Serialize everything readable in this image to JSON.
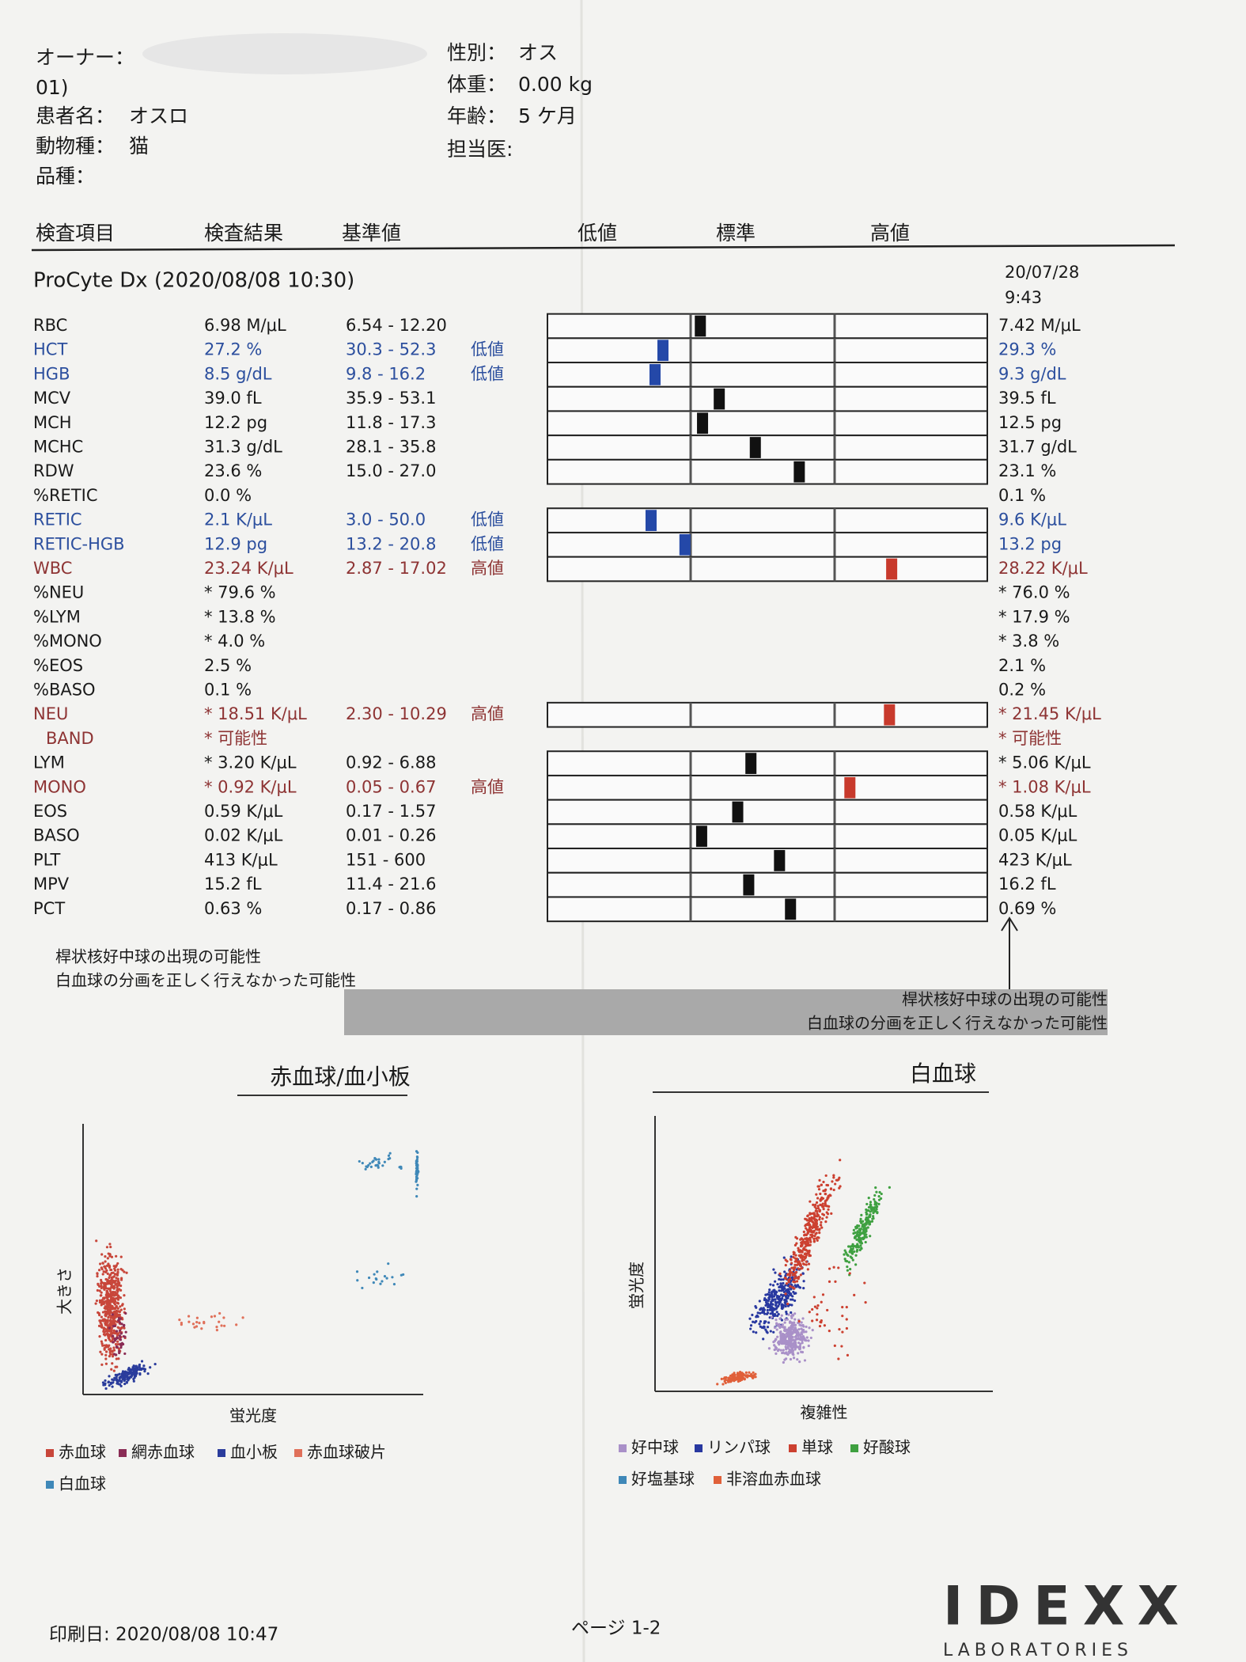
{
  "header": {
    "owner_label": "オーナー：",
    "owner_id": "01)",
    "patient_label": "患者名：",
    "patient": "オスロ",
    "species_label": "動物種：",
    "species": "猫",
    "breed_label": "品種：",
    "sex_label": "性別：",
    "sex": "オス",
    "weight_label": "体重：",
    "weight": "0.00 kg",
    "age_label": "年齢：",
    "age": "5 ケ月",
    "doctor_label": "担当医:"
  },
  "columns": [
    "検査項目",
    "検査結果",
    "基準値",
    "低値",
    "標準",
    "高値"
  ],
  "instrument": "ProCyte Dx (2020/08/08 10:30)",
  "previous_date": "20/07/28",
  "previous_time": "9:43",
  "status_colors": {
    "normal": "#1a1a1a",
    "low": "#2c4f9e",
    "high": "#8e3434"
  },
  "marker_colors": {
    "normal": "#111111",
    "low": "#2448a8",
    "high": "#c83a2c"
  },
  "rows": [
    {
      "name": "RBC",
      "result": "6.98 M/μL",
      "range": "6.54 - 12.20",
      "previous": "7.42 M/μL",
      "status": "normal"
    },
    {
      "name": "HCT",
      "result": "27.2 %",
      "range": "30.3 - 52.3",
      "flag": "低値",
      "previous": "29.3 %",
      "status": "low"
    },
    {
      "name": "HGB",
      "result": "8.5 g/dL",
      "range": "9.8 - 16.2",
      "flag": "低値",
      "previous": "9.3 g/dL",
      "status": "low"
    },
    {
      "name": "MCV",
      "result": "39.0 fL",
      "range": "35.9 - 53.1",
      "previous": "39.5 fL",
      "status": "normal"
    },
    {
      "name": "MCH",
      "result": "12.2 pg",
      "range": "11.8 - 17.3",
      "previous": "12.5 pg",
      "status": "normal"
    },
    {
      "name": "MCHC",
      "result": "31.3 g/dL",
      "range": "28.1 - 35.8",
      "previous": "31.7 g/dL",
      "status": "normal"
    },
    {
      "name": "RDW",
      "result": "23.6 %",
      "range": "15.0 - 27.0",
      "previous": "23.1 %",
      "status": "normal"
    },
    {
      "name": "%RETIC",
      "result": "0.0 %",
      "previous": "0.1 %",
      "status": "normal"
    },
    {
      "name": "RETIC",
      "result": "2.1 K/μL",
      "range": "3.0 - 50.0",
      "flag": "低値",
      "previous": "9.6 K/μL",
      "status": "low"
    },
    {
      "name": "RETIC-HGB",
      "result": "12.9 pg",
      "range": "13.2 - 20.8",
      "flag": "低値",
      "previous": "13.2 pg",
      "status": "low"
    },
    {
      "name": "WBC",
      "result": "23.24 K/μL",
      "range": "2.87 - 17.02",
      "flag": "高値",
      "previous": "28.22 K/μL",
      "status": "high"
    },
    {
      "name": "%NEU",
      "result": "* 79.6 %",
      "previous": "* 76.0 %",
      "status": "normal"
    },
    {
      "name": "%LYM",
      "result": "* 13.8 %",
      "previous": "* 17.9 %",
      "status": "normal"
    },
    {
      "name": "%MONO",
      "result": "* 4.0 %",
      "previous": "* 3.8 %",
      "status": "normal"
    },
    {
      "name": "%EOS",
      "result": "2.5 %",
      "previous": "2.1 %",
      "status": "normal"
    },
    {
      "name": "%BASO",
      "result": "0.1 %",
      "previous": "0.2 %",
      "status": "normal"
    },
    {
      "name": "NEU",
      "result": "* 18.51 K/μL",
      "range": "2.30 - 10.29",
      "flag": "高値",
      "previous": "* 21.45 K/μL",
      "status": "high"
    },
    {
      "name": "BAND",
      "result": "* 可能性",
      "previous": "* 可能性",
      "status": "high"
    },
    {
      "name": "LYM",
      "result": "* 3.20 K/μL",
      "range": "0.92 - 6.88",
      "previous": "* 5.06 K/μL",
      "status": "normal"
    },
    {
      "name": "MONO",
      "result": "* 0.92 K/μL",
      "range": "0.05 - 0.67",
      "flag": "高値",
      "previous": "* 1.08 K/μL",
      "status": "high"
    },
    {
      "name": "EOS",
      "result": "0.59 K/μL",
      "range": "0.17 - 1.57",
      "previous": "0.58 K/μL",
      "status": "normal"
    },
    {
      "name": "BASO",
      "result": "0.02 K/μL",
      "range": "0.01 - 0.26",
      "previous": "0.05 K/μL",
      "status": "normal"
    },
    {
      "name": "PLT",
      "result": "413 K/μL",
      "range": "151 - 600",
      "previous": "423 K/μL",
      "status": "normal"
    },
    {
      "name": "MPV",
      "result": "15.2 fL",
      "range": "11.4 - 21.6",
      "previous": "16.2 fL",
      "status": "normal"
    },
    {
      "name": "PCT",
      "result": "0.63 %",
      "range": "0.17 - 0.86",
      "previous": "0.69 %",
      "status": "normal"
    }
  ],
  "notes": [
    "桿状核好中球の出現の可能性",
    "白血球の分画を正しく行えなかった可能性"
  ],
  "flag_box": [
    "桿状核好中球の出現の可能性",
    "白血球の分画を正しく行えなかった可能性"
  ],
  "rbc_plot": {
    "title": "赤血球/血小板",
    "y_label": "大きさ",
    "x_label": "蛍光度",
    "legend": [
      {
        "label": "赤血球",
        "color": "#c8463a"
      },
      {
        "label": "網赤血球",
        "color": "#8a2c55"
      },
      {
        "label": "血小板",
        "color": "#2a3c9c"
      },
      {
        "label": "赤血球破片",
        "color": "#e0705a"
      },
      {
        "label": "白血球",
        "color": "#3f88b8"
      }
    ]
  },
  "wbc_plot": {
    "title": "白血球",
    "y_label": "蛍光度",
    "x_label": "複雑性",
    "legend": [
      {
        "label": "好中球",
        "color": "#a990c8"
      },
      {
        "label": "リンパ球",
        "color": "#2838a0"
      },
      {
        "label": "単球",
        "color": "#cc4030"
      },
      {
        "label": "好酸球",
        "color": "#3ea040"
      },
      {
        "label": "好塩基球",
        "color": "#3f88b8"
      },
      {
        "label": "非溶血赤血球",
        "color": "#e0603a"
      }
    ]
  },
  "footer": {
    "print_date": "印刷日: 2020/08/08 10:47",
    "page": "ページ 1-2",
    "logo": "IDEXX",
    "logo_sub": "LABORATORIES"
  }
}
